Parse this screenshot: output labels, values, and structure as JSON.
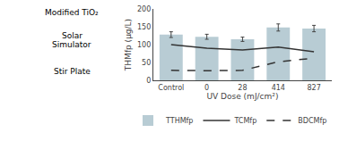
{
  "chart_data": {
    "type": "bar",
    "categories": [
      "Control",
      "0",
      "28",
      "414",
      "827"
    ],
    "series": [
      {
        "name": "TTHMfp",
        "type": "bar",
        "color": "#b8ccd4",
        "values": [
          128,
          122,
          115,
          148,
          145
        ],
        "errors": [
          8,
          7,
          6,
          10,
          9
        ]
      },
      {
        "name": "TCMfp",
        "type": "line",
        "color": "#333333",
        "line_style": "solid",
        "values": [
          100,
          90,
          85,
          93,
          80
        ]
      },
      {
        "name": "BDCMfp",
        "type": "line",
        "color": "#333333",
        "line_style": "dashed",
        "values": [
          28,
          27,
          28,
          52,
          62
        ]
      }
    ],
    "xlabel": "UV Dose (mJ/cm²)",
    "ylabel": "THMfp (μg/L)",
    "ylim": [
      0,
      200
    ],
    "yticks": [
      0,
      50,
      100,
      150,
      200
    ],
    "grid": false,
    "legend": "bottom",
    "annotations": [
      "Modified TiO₂",
      "Solar",
      "Simulator",
      "Stir Plate"
    ]
  }
}
